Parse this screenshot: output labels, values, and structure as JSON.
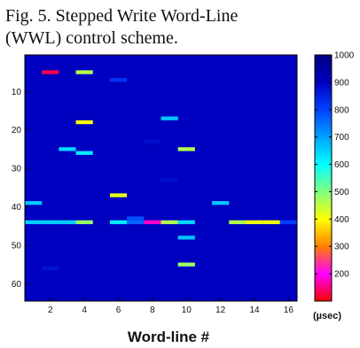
{
  "caption": {
    "line1": "Fig. 5. Stepped Write Word-Line",
    "line2": "(WWL) control scheme."
  },
  "chart_data": {
    "type": "heatmap",
    "title": "",
    "xlabel": "Word-line #",
    "ylabel": "",
    "x_ticks": [
      2,
      4,
      6,
      8,
      10,
      12,
      14,
      16
    ],
    "y_ticks": [
      10,
      20,
      30,
      40,
      50,
      60
    ],
    "xlim": [
      0.5,
      16.5
    ],
    "ylim": [
      0.5,
      64.5
    ],
    "y_reversed": true,
    "colorbar": {
      "ticks": [
        200,
        300,
        400,
        500,
        600,
        700,
        800,
        900,
        1000
      ],
      "range": [
        100,
        1000
      ],
      "unit": "(µsec)",
      "colormap": "jet"
    },
    "background_value": 900,
    "cells": [
      {
        "x": 1,
        "y": 39,
        "value": 660
      },
      {
        "x": 1,
        "y": 44,
        "value": 650
      },
      {
        "x": 2,
        "y": 5,
        "value": 130
      },
      {
        "x": 2,
        "y": 44,
        "value": 650
      },
      {
        "x": 2,
        "y": 56,
        "value": 870
      },
      {
        "x": 3,
        "y": 25,
        "value": 640
      },
      {
        "x": 3,
        "y": 44,
        "value": 650
      },
      {
        "x": 4,
        "y": 5,
        "value": 460
      },
      {
        "x": 4,
        "y": 18,
        "value": 400
      },
      {
        "x": 4,
        "y": 26,
        "value": 620
      },
      {
        "x": 4,
        "y": 44,
        "value": 480
      },
      {
        "x": 6,
        "y": 7,
        "value": 820
      },
      {
        "x": 6,
        "y": 37,
        "value": 420
      },
      {
        "x": 6,
        "y": 44,
        "value": 620
      },
      {
        "x": 7,
        "y": 43,
        "value": 780
      },
      {
        "x": 7,
        "y": 44,
        "value": 760
      },
      {
        "x": 8,
        "y": 23,
        "value": 880
      },
      {
        "x": 8,
        "y": 44,
        "value": 180
      },
      {
        "x": 9,
        "y": 17,
        "value": 660
      },
      {
        "x": 9,
        "y": 33,
        "value": 880
      },
      {
        "x": 9,
        "y": 44,
        "value": 460
      },
      {
        "x": 10,
        "y": 25,
        "value": 460
      },
      {
        "x": 10,
        "y": 44,
        "value": 640
      },
      {
        "x": 10,
        "y": 48,
        "value": 660
      },
      {
        "x": 10,
        "y": 55,
        "value": 480
      },
      {
        "x": 12,
        "y": 39,
        "value": 660
      },
      {
        "x": 13,
        "y": 44,
        "value": 460
      },
      {
        "x": 14,
        "y": 44,
        "value": 410
      },
      {
        "x": 15,
        "y": 44,
        "value": 410
      },
      {
        "x": 16,
        "y": 44,
        "value": 800
      }
    ]
  }
}
